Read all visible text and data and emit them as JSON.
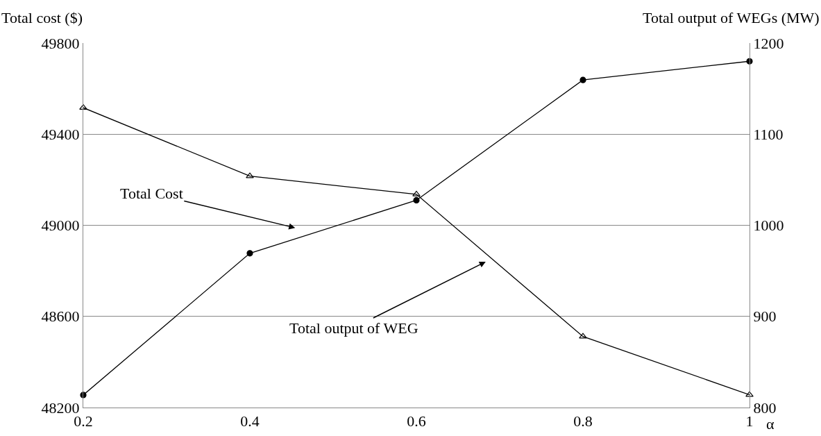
{
  "chart_data": {
    "type": "line",
    "xlabel": "α",
    "ylabel": "Total cost ($)",
    "y2label": "Total output of WEGs (MW)",
    "x": [
      0.2,
      0.4,
      0.6,
      0.8,
      1
    ],
    "series": [
      {
        "color": "#000000",
        "marker": "circle",
        "values": [
          48255,
          48877,
          49110,
          49638,
          49720
        ]
      },
      {
        "color": "#000000",
        "marker": "triangle",
        "axis": "y2",
        "values": [
          1129,
          1054,
          1034,
          878,
          814
        ]
      }
    ],
    "xlim": [
      0.2,
      1
    ],
    "xticks": [
      0.2,
      0.4,
      0.6,
      0.8,
      1
    ],
    "ylim": [
      48200,
      49800
    ],
    "yticks": [
      48200,
      48600,
      49000,
      49400,
      49800
    ],
    "y2lim": [
      800,
      1200
    ],
    "y2ticks": [
      800,
      900,
      1000,
      1100,
      1200
    ],
    "grid": "y",
    "line_style": "solid",
    "annotations": [
      "Total Cost",
      "Total output of WEG"
    ]
  }
}
